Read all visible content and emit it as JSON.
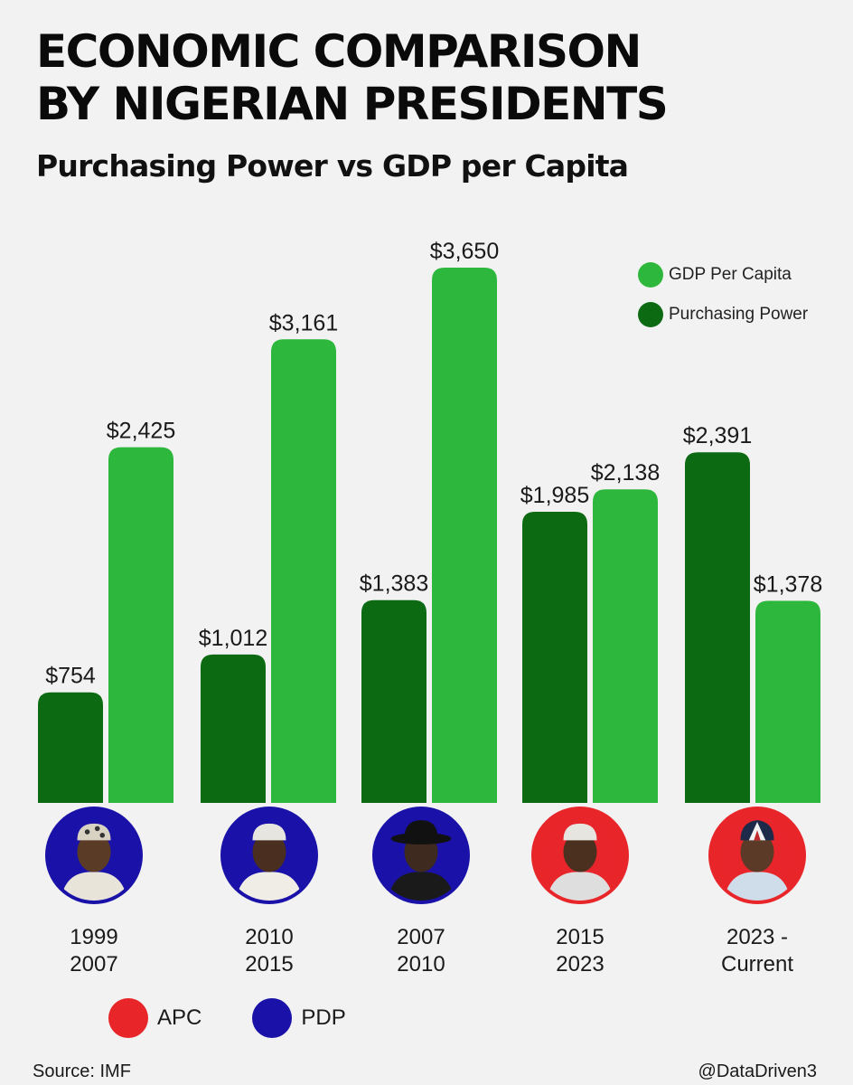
{
  "title_line1": "ECONOMIC COMPARISON",
  "title_line2": "BY NIGERIAN PRESIDENTS",
  "subtitle": "Purchasing Power vs GDP per Capita",
  "legend": {
    "gdp_label": "GDP Per Capita",
    "pp_label": "Purchasing Power"
  },
  "colors": {
    "gdp": "#2db83d",
    "pp": "#0b6a12",
    "apc": "#e8262a",
    "pdp": "#1a12a8"
  },
  "chart_data": {
    "type": "bar",
    "title": "Purchasing Power vs GDP per Capita",
    "categories": [
      "1999 2007",
      "2010 2015",
      "2007 2010",
      "2015 2023",
      "2023 - Current"
    ],
    "series": [
      {
        "name": "Purchasing Power",
        "values": [
          754,
          1012,
          1383,
          1985,
          2391
        ],
        "labels": [
          "$754",
          "$1,012",
          "$1,383",
          "$1,985",
          "$2,391"
        ]
      },
      {
        "name": "GDP Per Capita",
        "values": [
          2425,
          3161,
          3650,
          2138,
          1378
        ],
        "labels": [
          "$2,425",
          "$3,161",
          "$3,650",
          "$2,138",
          "$1,378"
        ]
      }
    ],
    "ylim": [
      0,
      3650
    ]
  },
  "presidents": [
    {
      "period_line1": "1999",
      "period_line2": "2007",
      "party": "pdp"
    },
    {
      "period_line1": "2010",
      "period_line2": "2015",
      "party": "pdp"
    },
    {
      "period_line1": "2007",
      "period_line2": "2010",
      "party": "pdp"
    },
    {
      "period_line1": "2015",
      "period_line2": "2023",
      "party": "apc"
    },
    {
      "period_line1": "2023 -",
      "period_line2": "Current",
      "party": "apc"
    }
  ],
  "party_legend": {
    "apc_label": "APC",
    "pdp_label": "PDP"
  },
  "source": "Source: IMF",
  "handle": "@DataDriven3"
}
